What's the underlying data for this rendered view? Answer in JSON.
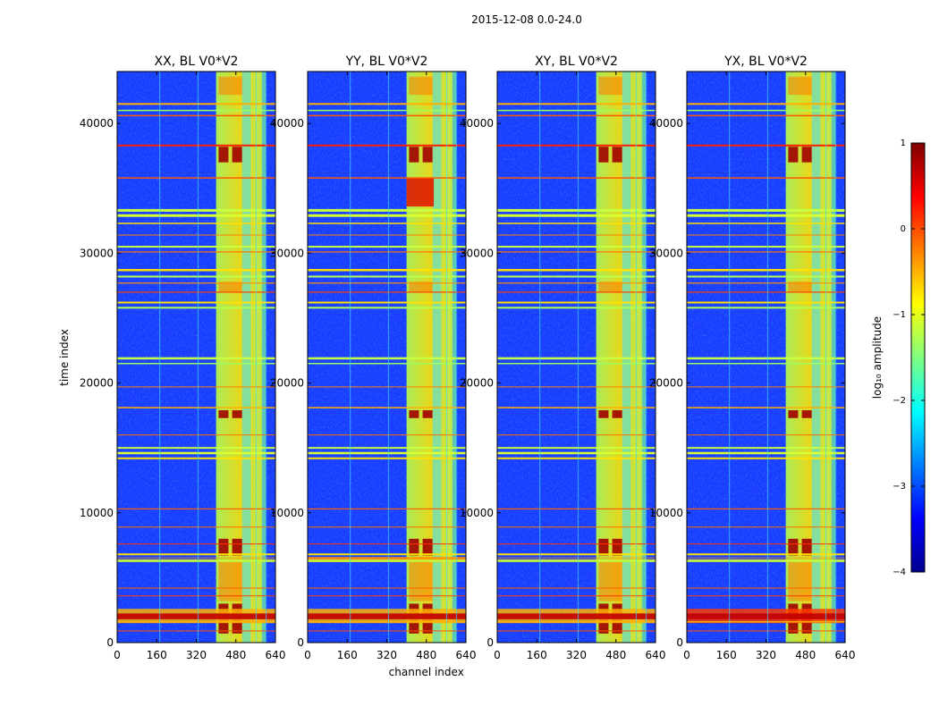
{
  "figure": {
    "suptitle": "2015-12-08 0.0-24.0"
  },
  "chart_data": [
    {
      "type": "heatmap",
      "title": "XX, BL V0*V2",
      "xlabel": "",
      "ylabel": "time index",
      "xlim": [
        0,
        640
      ],
      "ylim": [
        0,
        44000
      ],
      "xticks": [
        0,
        160,
        320,
        480,
        640
      ],
      "yticks": [
        0,
        10000,
        20000,
        30000,
        40000
      ]
    },
    {
      "type": "heatmap",
      "title": "YY, BL V0*V2",
      "xlabel": "channel index",
      "ylabel": "",
      "xlim": [
        0,
        640
      ],
      "ylim": [
        0,
        44000
      ],
      "xticks": [
        0,
        160,
        320,
        480,
        640
      ],
      "yticks": [
        0,
        10000,
        20000,
        30000,
        40000
      ]
    },
    {
      "type": "heatmap",
      "title": "XY, BL V0*V2",
      "xlabel": "",
      "ylabel": "",
      "xlim": [
        0,
        640
      ],
      "ylim": [
        0,
        44000
      ],
      "xticks": [
        0,
        160,
        320,
        480,
        640
      ],
      "yticks": [
        0,
        10000,
        20000,
        30000,
        40000
      ]
    },
    {
      "type": "heatmap",
      "title": "YX, BL V0*V2",
      "xlabel": "",
      "ylabel": "",
      "xlim": [
        0,
        640
      ],
      "ylim": [
        0,
        44000
      ],
      "xticks": [
        0,
        160,
        320,
        480,
        640
      ],
      "yticks": [
        0,
        10000,
        20000,
        30000,
        40000
      ]
    }
  ],
  "colorbar": {
    "label": "log₁₀ amplitude",
    "range": [
      -4,
      1
    ],
    "ticks": [
      "1",
      "0",
      "−1",
      "−2",
      "−3",
      "−4"
    ],
    "colormap": "jet"
  }
}
